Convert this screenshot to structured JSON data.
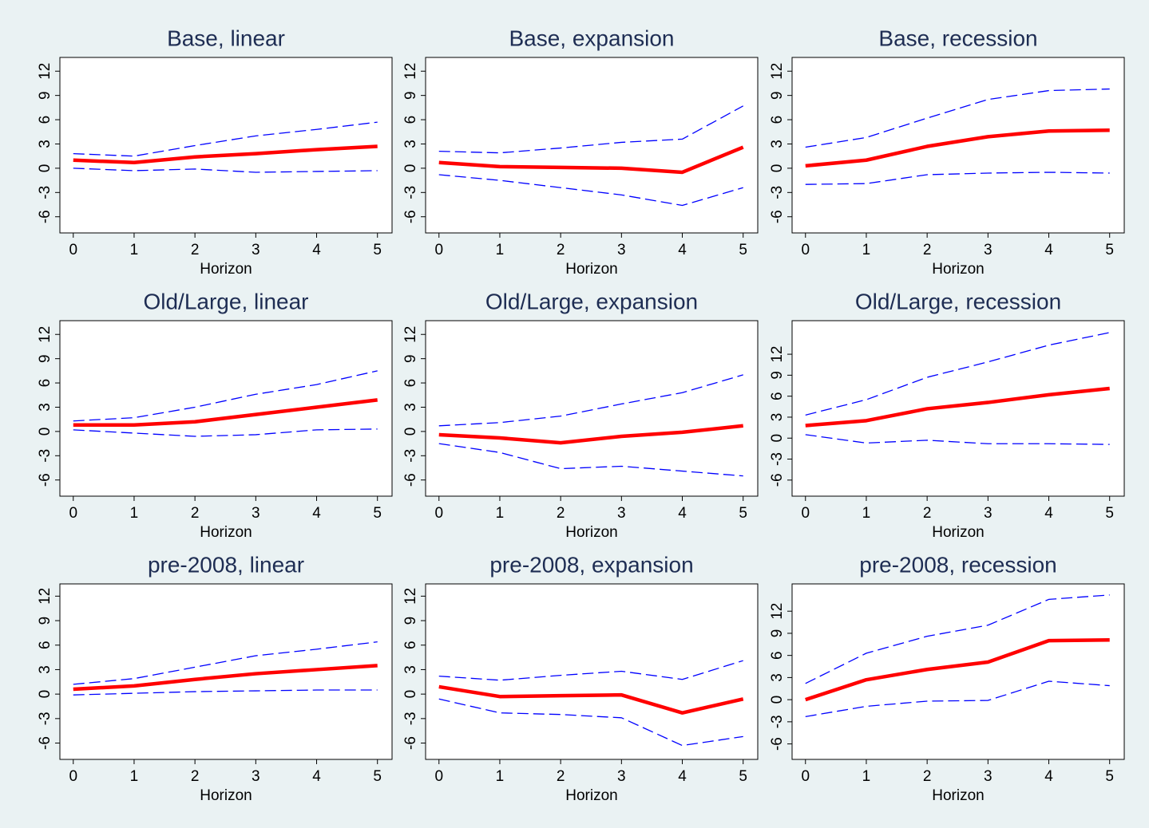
{
  "chart_data": [
    {
      "type": "line",
      "title": "Base, linear",
      "xlabel": "Horizon",
      "x": [
        0,
        1,
        2,
        3,
        4,
        5
      ],
      "xlim": [
        -0.22,
        5.24
      ],
      "xticks": [
        0,
        1,
        2,
        3,
        4,
        5
      ],
      "ylim": [
        -8,
        13.7
      ],
      "yticks": [
        -6,
        -3,
        0,
        3,
        6,
        9,
        12
      ],
      "series": [
        {
          "color": "#0000ff",
          "dashed": true,
          "values": [
            1.8,
            1.5,
            2.8,
            4.0,
            4.8,
            5.7
          ]
        },
        {
          "color": "#0000ff",
          "dashed": true,
          "values": [
            0,
            -0.3,
            -0.1,
            -0.5,
            -0.4,
            -0.3
          ]
        },
        {
          "color": "#ff0000",
          "dashed": false,
          "values": [
            1.0,
            0.7,
            1.4,
            1.8,
            2.3,
            2.7
          ]
        }
      ]
    },
    {
      "type": "line",
      "title": "Base, expansion",
      "xlabel": "Horizon",
      "x": [
        0,
        1,
        2,
        3,
        4,
        5
      ],
      "xlim": [
        -0.22,
        5.24
      ],
      "xticks": [
        0,
        1,
        2,
        3,
        4,
        5
      ],
      "ylim": [
        -8,
        13.7
      ],
      "yticks": [
        -6,
        -3,
        0,
        3,
        6,
        9,
        12
      ],
      "series": [
        {
          "color": "#0000ff",
          "dashed": true,
          "values": [
            2.1,
            1.9,
            2.5,
            3.2,
            3.6,
            7.7
          ]
        },
        {
          "color": "#0000ff",
          "dashed": true,
          "values": [
            -0.8,
            -1.5,
            -2.4,
            -3.3,
            -4.6,
            -2.4
          ]
        },
        {
          "color": "#ff0000",
          "dashed": false,
          "values": [
            0.7,
            0.2,
            0.1,
            0.0,
            -0.5,
            2.6
          ]
        }
      ]
    },
    {
      "type": "line",
      "title": "Base, recession",
      "xlabel": "Horizon",
      "x": [
        0,
        1,
        2,
        3,
        4,
        5
      ],
      "xlim": [
        -0.22,
        5.24
      ],
      "xticks": [
        0,
        1,
        2,
        3,
        4,
        5
      ],
      "ylim": [
        -8,
        13.7
      ],
      "yticks": [
        -6,
        -3,
        0,
        3,
        6,
        9,
        12
      ],
      "series": [
        {
          "color": "#0000ff",
          "dashed": true,
          "values": [
            2.6,
            3.8,
            6.2,
            8.5,
            9.6,
            9.8
          ]
        },
        {
          "color": "#0000ff",
          "dashed": true,
          "values": [
            -2.0,
            -1.9,
            -0.8,
            -0.6,
            -0.5,
            -0.6
          ]
        },
        {
          "color": "#ff0000",
          "dashed": false,
          "values": [
            0.3,
            1.0,
            2.7,
            3.9,
            4.6,
            4.7
          ]
        }
      ]
    },
    {
      "type": "line",
      "title": "Old/Large, linear",
      "xlabel": "Horizon",
      "x": [
        0,
        1,
        2,
        3,
        4,
        5
      ],
      "xlim": [
        -0.22,
        5.24
      ],
      "xticks": [
        0,
        1,
        2,
        3,
        4,
        5
      ],
      "ylim": [
        -8,
        13.7
      ],
      "yticks": [
        -6,
        -3,
        0,
        3,
        6,
        9,
        12
      ],
      "series": [
        {
          "color": "#0000ff",
          "dashed": true,
          "values": [
            1.3,
            1.7,
            3.0,
            4.6,
            5.8,
            7.5
          ]
        },
        {
          "color": "#0000ff",
          "dashed": true,
          "values": [
            0.2,
            -0.2,
            -0.6,
            -0.4,
            0.2,
            0.3
          ]
        },
        {
          "color": "#ff0000",
          "dashed": false,
          "values": [
            0.8,
            0.8,
            1.2,
            2.1,
            3.0,
            3.9
          ]
        }
      ]
    },
    {
      "type": "line",
      "title": "Old/Large, expansion",
      "xlabel": "Horizon",
      "x": [
        0,
        1,
        2,
        3,
        4,
        5
      ],
      "xlim": [
        -0.22,
        5.24
      ],
      "xticks": [
        0,
        1,
        2,
        3,
        4,
        5
      ],
      "ylim": [
        -8,
        13.7
      ],
      "yticks": [
        -6,
        -3,
        0,
        3,
        6,
        9,
        12
      ],
      "series": [
        {
          "color": "#0000ff",
          "dashed": true,
          "values": [
            0.7,
            1.1,
            1.9,
            3.4,
            4.8,
            7.0
          ]
        },
        {
          "color": "#0000ff",
          "dashed": true,
          "values": [
            -1.5,
            -2.6,
            -4.6,
            -4.3,
            -4.9,
            -5.5
          ]
        },
        {
          "color": "#ff0000",
          "dashed": false,
          "values": [
            -0.4,
            -0.8,
            -1.4,
            -0.6,
            -0.1,
            0.7
          ]
        }
      ]
    },
    {
      "type": "line",
      "title": "Old/Large, recession",
      "xlabel": "Horizon",
      "x": [
        0,
        1,
        2,
        3,
        4,
        5
      ],
      "xlim": [
        -0.22,
        5.24
      ],
      "xticks": [
        0,
        1,
        2,
        3,
        4,
        5
      ],
      "ylim": [
        -8.3,
        16.8
      ],
      "yticks": [
        -6,
        -3,
        0,
        3,
        6,
        9,
        12
      ],
      "series": [
        {
          "color": "#0000ff",
          "dashed": true,
          "values": [
            3.3,
            5.5,
            8.7,
            10.9,
            13.3,
            15.1
          ]
        },
        {
          "color": "#0000ff",
          "dashed": true,
          "values": [
            0.5,
            -0.7,
            -0.3,
            -0.8,
            -0.8,
            -0.9
          ]
        },
        {
          "color": "#ff0000",
          "dashed": false,
          "values": [
            1.8,
            2.5,
            4.2,
            5.1,
            6.2,
            7.1
          ]
        }
      ]
    },
    {
      "type": "line",
      "title": "pre-2008, linear",
      "xlabel": "Horizon",
      "x": [
        0,
        1,
        2,
        3,
        4,
        5
      ],
      "xlim": [
        -0.22,
        5.24
      ],
      "xticks": [
        0,
        1,
        2,
        3,
        4,
        5
      ],
      "ylim": [
        -8,
        13.5
      ],
      "yticks": [
        -6,
        -3,
        0,
        3,
        6,
        9,
        12
      ],
      "series": [
        {
          "color": "#0000ff",
          "dashed": true,
          "values": [
            1.2,
            1.9,
            3.3,
            4.7,
            5.5,
            6.4
          ]
        },
        {
          "color": "#0000ff",
          "dashed": true,
          "values": [
            -0.1,
            0.1,
            0.3,
            0.4,
            0.5,
            0.5
          ]
        },
        {
          "color": "#ff0000",
          "dashed": false,
          "values": [
            0.6,
            1.0,
            1.8,
            2.5,
            3.0,
            3.5
          ]
        }
      ]
    },
    {
      "type": "line",
      "title": "pre-2008, expansion",
      "xlabel": "Horizon",
      "x": [
        0,
        1,
        2,
        3,
        4,
        5
      ],
      "xlim": [
        -0.22,
        5.24
      ],
      "xticks": [
        0,
        1,
        2,
        3,
        4,
        5
      ],
      "ylim": [
        -8,
        13.5
      ],
      "yticks": [
        -6,
        -3,
        0,
        3,
        6,
        9,
        12
      ],
      "series": [
        {
          "color": "#0000ff",
          "dashed": true,
          "values": [
            2.2,
            1.7,
            2.3,
            2.8,
            1.8,
            4.1
          ]
        },
        {
          "color": "#0000ff",
          "dashed": true,
          "values": [
            -0.6,
            -2.3,
            -2.5,
            -2.9,
            -6.3,
            -5.2
          ]
        },
        {
          "color": "#ff0000",
          "dashed": false,
          "values": [
            0.9,
            -0.3,
            -0.2,
            -0.1,
            -2.3,
            -0.6
          ]
        }
      ]
    },
    {
      "type": "line",
      "title": "pre-2008, recession",
      "xlabel": "Horizon",
      "x": [
        0,
        1,
        2,
        3,
        4,
        5
      ],
      "xlim": [
        -0.22,
        5.24
      ],
      "xticks": [
        0,
        1,
        2,
        3,
        4,
        5
      ],
      "ylim": [
        -8.1,
        15.7
      ],
      "yticks": [
        -6,
        -3,
        0,
        3,
        6,
        9,
        12
      ],
      "series": [
        {
          "color": "#0000ff",
          "dashed": true,
          "values": [
            2.2,
            6.3,
            8.6,
            10.1,
            13.6,
            14.2
          ]
        },
        {
          "color": "#0000ff",
          "dashed": true,
          "values": [
            -2.3,
            -0.9,
            -0.2,
            -0.1,
            2.5,
            1.9
          ]
        },
        {
          "color": "#ff0000",
          "dashed": false,
          "values": [
            0,
            2.7,
            4.1,
            5.1,
            8.0,
            8.1
          ]
        }
      ]
    }
  ]
}
